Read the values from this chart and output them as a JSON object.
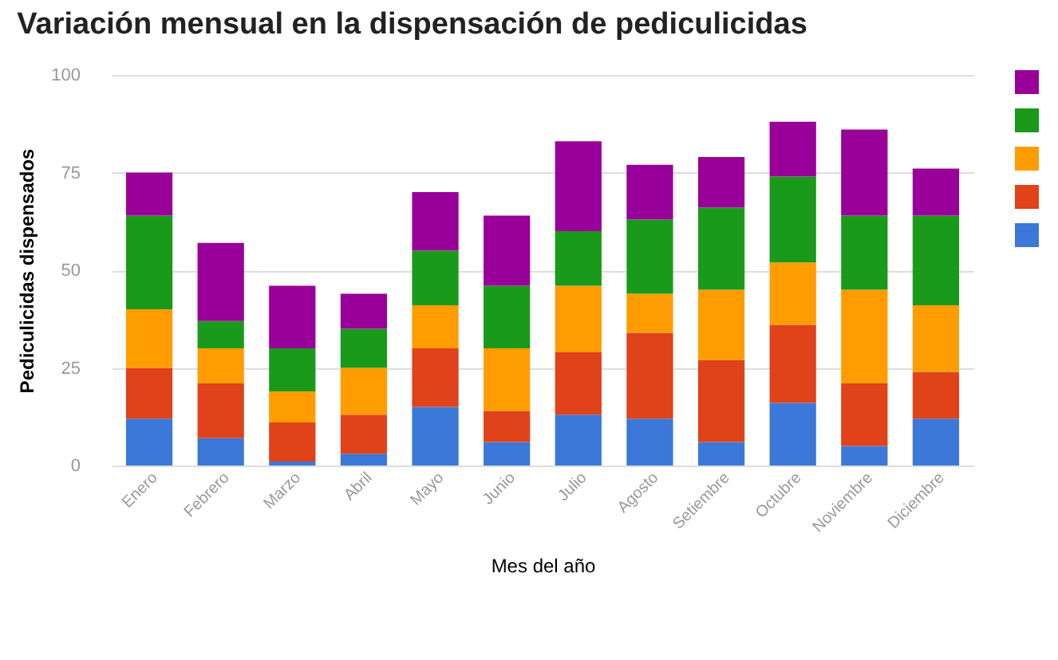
{
  "chart_data": {
    "type": "bar",
    "title": "Variación mensual en la dispensación de pediculicidas",
    "xlabel": "Mes del año",
    "ylabel": "Pediculicidas dispensados",
    "categories": [
      "Enero",
      "Febrero",
      "Marzo",
      "Abril",
      "Mayo",
      "Junio",
      "Julio",
      "Agosto",
      "Setiembre",
      "Octubre",
      "Noviembre",
      "Diciembre"
    ],
    "series": [
      {
        "color": "#3c78d8",
        "values": [
          12,
          7,
          1,
          3,
          15,
          6,
          13,
          12,
          6,
          16,
          5,
          12
        ]
      },
      {
        "color": "#e0421a",
        "values": [
          13,
          14,
          10,
          10,
          15,
          8,
          16,
          22,
          21,
          20,
          16,
          12
        ]
      },
      {
        "color": "#ff9d00",
        "values": [
          15,
          9,
          8,
          12,
          11,
          16,
          17,
          10,
          18,
          16,
          24,
          17
        ]
      },
      {
        "color": "#1a9a1a",
        "values": [
          24,
          7,
          11,
          10,
          14,
          16,
          14,
          19,
          21,
          22,
          19,
          23
        ]
      },
      {
        "color": "#990099",
        "values": [
          11,
          20,
          16,
          9,
          15,
          18,
          23,
          14,
          13,
          14,
          22,
          12
        ]
      }
    ],
    "stacked": true,
    "ylim": [
      0,
      100
    ],
    "yticks": [
      0,
      25,
      50,
      75,
      100
    ],
    "grid": "y"
  }
}
